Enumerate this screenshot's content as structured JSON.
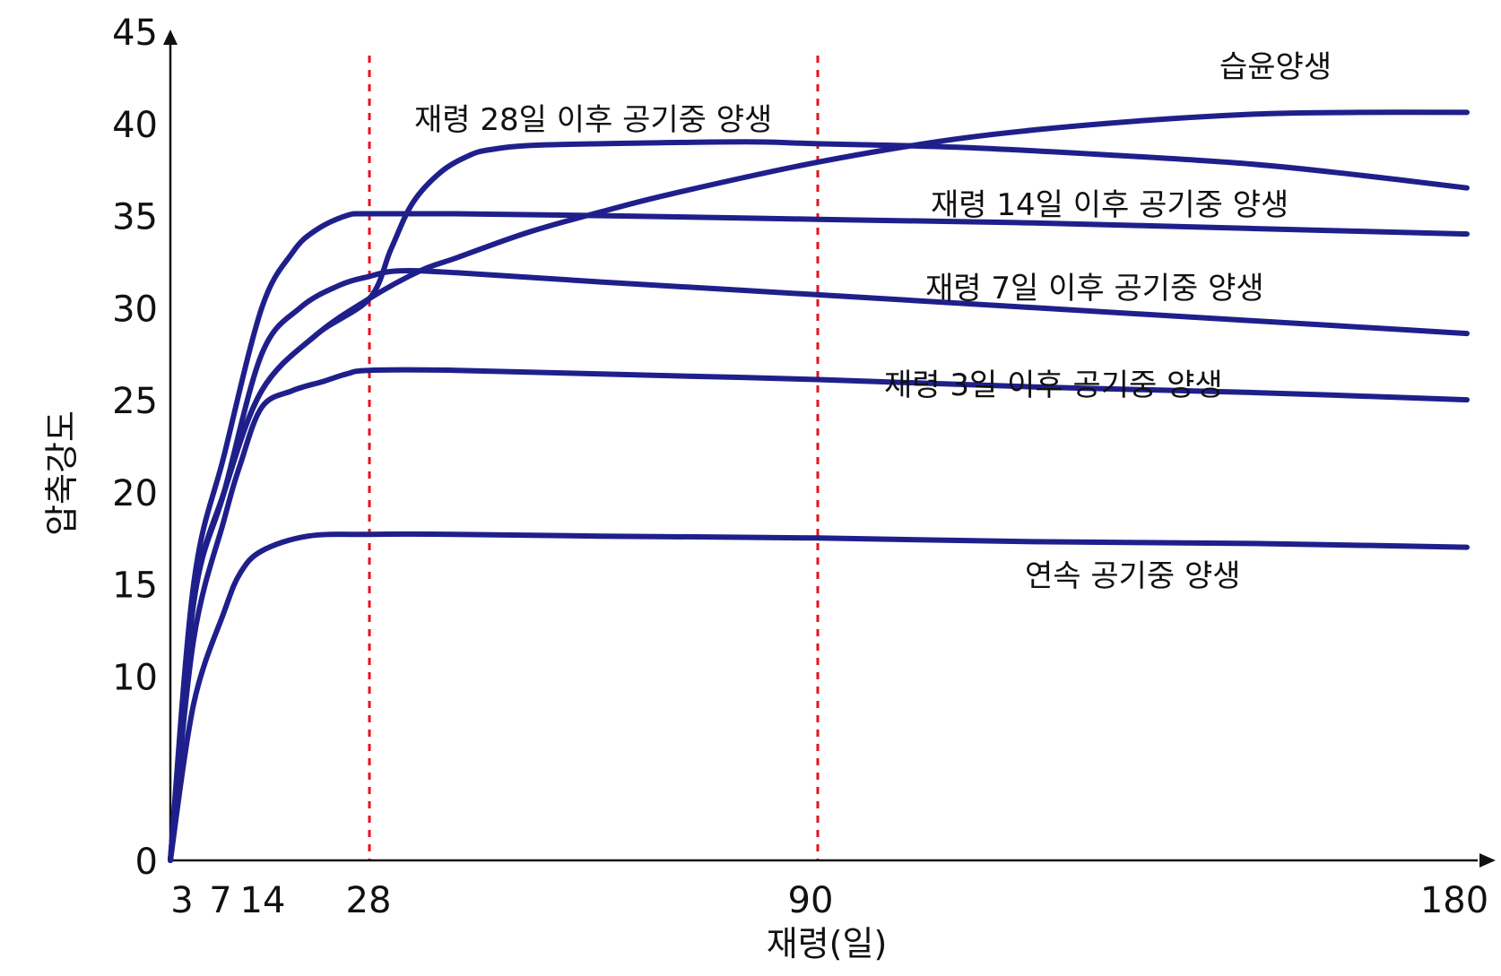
{
  "chart_data": {
    "type": "line",
    "ylabel": "압축강도",
    "xlabel": "재령(일)",
    "ylim": [
      0,
      45
    ],
    "xlim": [
      0,
      180
    ],
    "y_ticks": [
      "0",
      "10",
      "15",
      "20",
      "25",
      "30",
      "35",
      "40",
      "45"
    ],
    "x_ticks": [
      {
        "label": "3",
        "value": 3
      },
      {
        "label": "7",
        "value": 7
      },
      {
        "label": "14",
        "value": 14
      },
      {
        "label": "28",
        "value": 28
      },
      {
        "label": "90",
        "value": 90
      },
      {
        "label": "180",
        "value": 180
      }
    ],
    "reference_lines": [
      28,
      90
    ],
    "line_color": "#1f1f8c",
    "reference_color": "#e8101c",
    "series": [
      {
        "name": "습윤양생",
        "x": [
          0,
          3,
          7,
          14,
          21,
          28,
          35,
          40,
          50,
          60,
          70,
          90,
          110,
          130,
          150,
          165,
          180
        ],
        "y": [
          0,
          14,
          20,
          25.5,
          28.5,
          30.5,
          32,
          32.7,
          34.1,
          35.2,
          36.2,
          37.9,
          39.2,
          40.0,
          40.5,
          40.6,
          40.6
        ]
      },
      {
        "name": "재령 28일 이후 공기중 양생",
        "x": [
          0,
          3,
          7,
          14,
          21,
          28,
          31,
          34,
          38,
          42,
          45,
          50,
          60,
          80,
          90,
          110,
          130,
          150,
          165,
          180
        ],
        "y": [
          0,
          14,
          20,
          25.5,
          28.5,
          30.5,
          33.2,
          35.7,
          37.4,
          38.3,
          38.6,
          38.8,
          38.9,
          39.0,
          38.9,
          38.7,
          38.3,
          37.8,
          37.2,
          36.5
        ]
      },
      {
        "name": "재령 14일 이후 공기중 양생",
        "x": [
          0,
          3,
          7,
          14,
          18,
          21,
          25,
          28,
          40,
          60,
          90,
          120,
          150,
          180
        ],
        "y": [
          0,
          15,
          22,
          30,
          33.0,
          34.2,
          35.0,
          35.1,
          35.1,
          35.0,
          34.8,
          34.6,
          34.3,
          34.0
        ]
      },
      {
        "name": "재령 7일 이후 공기중 양생",
        "x": [
          0,
          3,
          7,
          14,
          19,
          24,
          28,
          32,
          40,
          60,
          90,
          120,
          150,
          180
        ],
        "y": [
          0,
          14,
          20,
          27.5,
          30.0,
          31.2,
          31.7,
          32.0,
          31.9,
          31.4,
          30.7,
          30.0,
          29.3,
          28.6
        ]
      },
      {
        "name": "재령 3일 이후 공기중 양생",
        "x": [
          0,
          3,
          7,
          10,
          14,
          18,
          22,
          25,
          28,
          40,
          60,
          90,
          120,
          150,
          180
        ],
        "y": [
          0,
          12,
          18.5,
          21.5,
          24.6,
          25.5,
          26.0,
          26.4,
          26.6,
          26.6,
          26.4,
          26.1,
          25.7,
          25.4,
          25.0
        ]
      },
      {
        "name": "연속 공기중 양생",
        "x": [
          0,
          3,
          7,
          10,
          14,
          20,
          28,
          40,
          60,
          90,
          120,
          150,
          180
        ],
        "y": [
          0,
          8.5,
          13.5,
          15.6,
          16.8,
          17.6,
          17.7,
          17.7,
          17.6,
          17.5,
          17.3,
          17.2,
          17.0
        ]
      }
    ]
  }
}
